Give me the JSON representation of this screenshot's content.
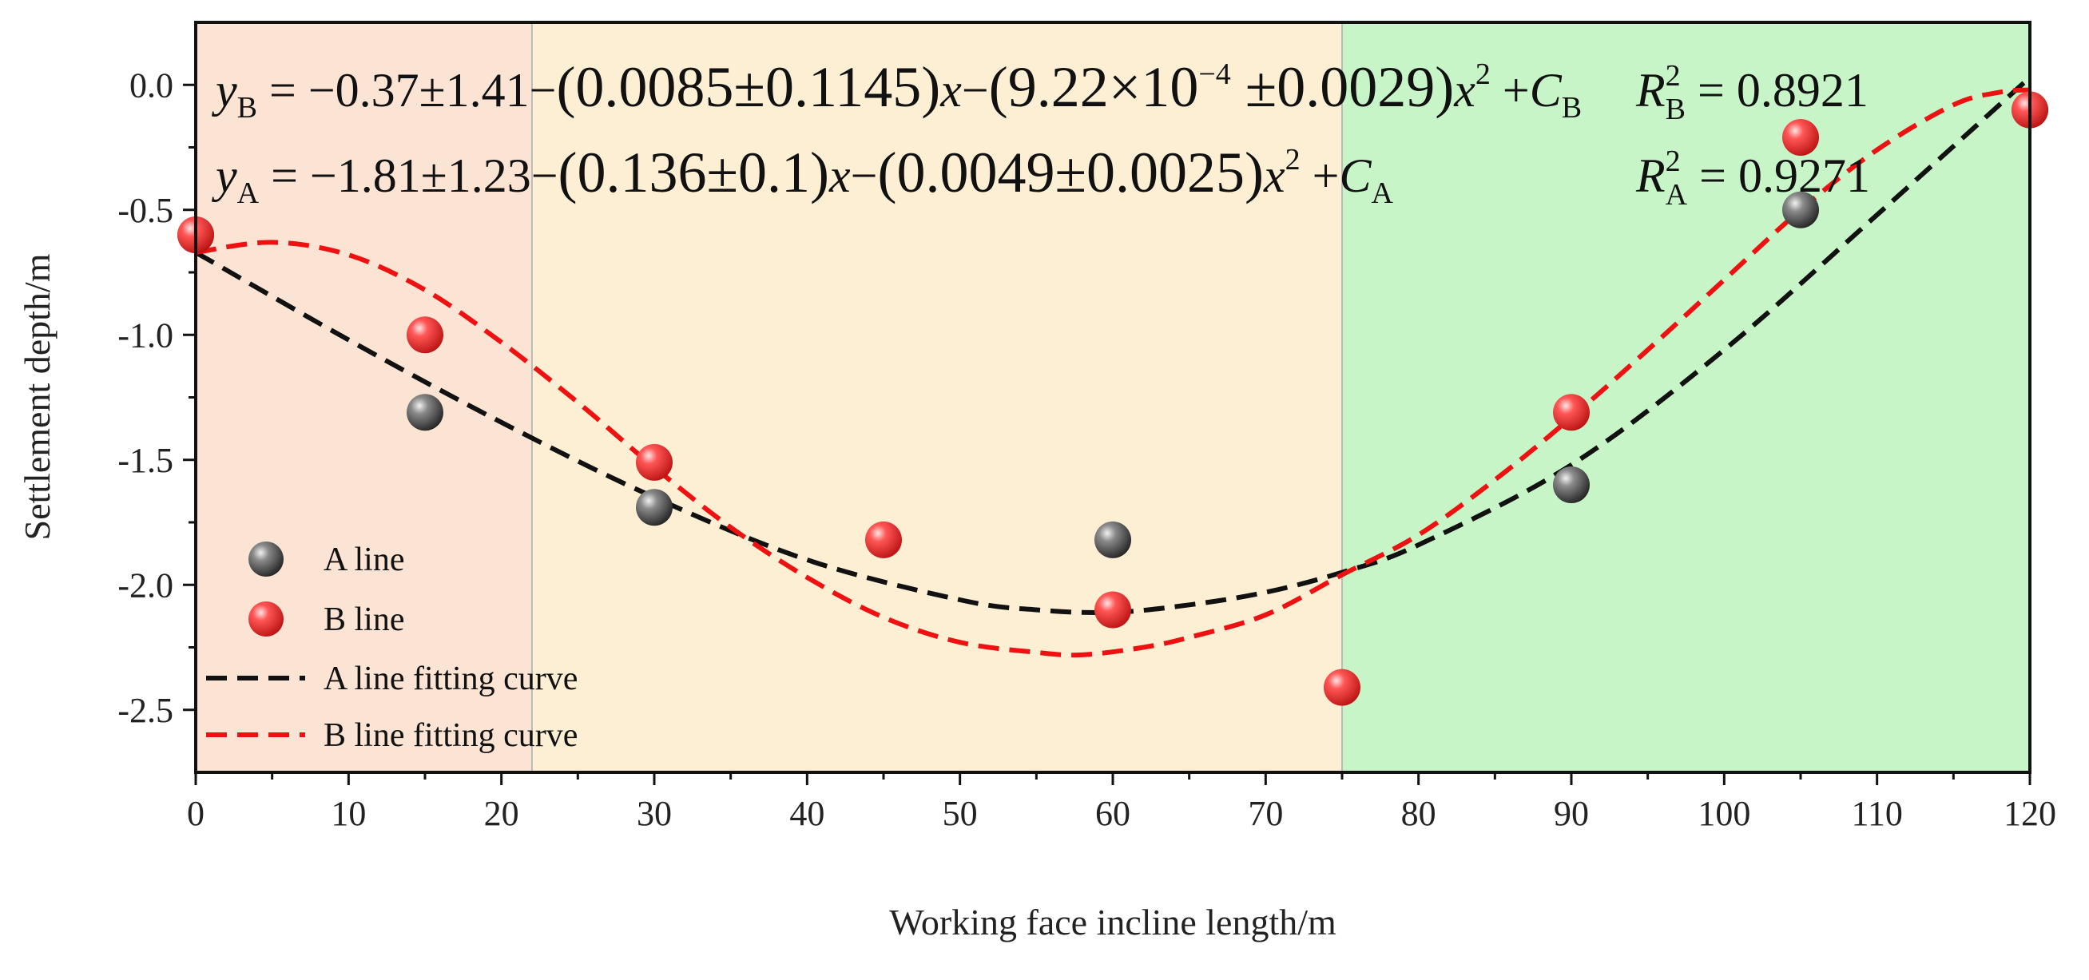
{
  "chart_data": {
    "type": "scatter",
    "title": "",
    "xlabel": "Working face incline length/m",
    "ylabel": "Settlement depth/m",
    "xlim": [
      0,
      120
    ],
    "ylim": [
      -2.75,
      0.25
    ],
    "x_ticks": [
      0,
      10,
      20,
      30,
      40,
      50,
      60,
      70,
      80,
      90,
      100,
      110,
      120
    ],
    "x_tick_labels": [
      "0",
      "10",
      "20",
      "30",
      "40",
      "50",
      "60",
      "70",
      "80",
      "90",
      "100",
      "110",
      "120"
    ],
    "y_ticks": [
      0.0,
      -0.5,
      -1.0,
      -1.5,
      -2.0,
      -2.5
    ],
    "y_tick_labels": [
      "0.0",
      "-0.5",
      "-1.0",
      "-1.5",
      "-2.0",
      "-2.5"
    ],
    "grid": false,
    "regions": [
      {
        "x_start": 0,
        "x_end": 22,
        "color": "#fce4d4"
      },
      {
        "x_start": 22,
        "x_end": 75,
        "color": "#fdefd4"
      },
      {
        "x_start": 75,
        "x_end": 120,
        "color": "#c8f5c8"
      }
    ],
    "series": [
      {
        "name": "A line",
        "kind": "points",
        "color": "#4a4a4a",
        "x": [
          0,
          15,
          30,
          60,
          90,
          105,
          120
        ],
        "y": [
          -0.6,
          -1.31,
          -1.69,
          -1.82,
          -1.6,
          -0.5,
          -0.1
        ]
      },
      {
        "name": "B line",
        "kind": "points",
        "color": "#f03c3c",
        "x": [
          0,
          15,
          30,
          45,
          60,
          75,
          90,
          105,
          120
        ],
        "y": [
          -0.6,
          -1.0,
          -1.51,
          -1.82,
          -2.1,
          -2.41,
          -1.31,
          -0.21,
          -0.1
        ]
      },
      {
        "name": "A line fitting curve",
        "kind": "dashed-line",
        "color": "#111111",
        "x": [
          0,
          10,
          20,
          30,
          40,
          50,
          55,
          60,
          65,
          70,
          75,
          80,
          90,
          100,
          110,
          120
        ],
        "y": [
          -0.67,
          -1.02,
          -1.35,
          -1.65,
          -1.9,
          -2.06,
          -2.1,
          -2.11,
          -2.08,
          -2.03,
          -1.95,
          -1.84,
          -1.52,
          -1.06,
          -0.52,
          0.03
        ]
      },
      {
        "name": "B line fitting curve",
        "kind": "dashed-line",
        "color": "#ee1111",
        "x": [
          0,
          5,
          10,
          15,
          20,
          25,
          30,
          35,
          40,
          45,
          50,
          55,
          58,
          62,
          65,
          70,
          75,
          80,
          85,
          90,
          95,
          100,
          105,
          110,
          115,
          118,
          120
        ],
        "y": [
          -0.67,
          -0.63,
          -0.68,
          -0.82,
          -1.03,
          -1.27,
          -1.53,
          -1.77,
          -1.97,
          -2.13,
          -2.23,
          -2.27,
          -2.28,
          -2.25,
          -2.21,
          -2.12,
          -1.96,
          -1.8,
          -1.58,
          -1.33,
          -1.06,
          -0.78,
          -0.5,
          -0.26,
          -0.08,
          -0.03,
          -0.02
        ]
      }
    ],
    "legend": {
      "position": "bottom-left",
      "entries": [
        "A line",
        "B line",
        "A line fitting curve",
        "B line fitting curve"
      ]
    },
    "annotations": {
      "eq_b": {
        "y_sym": "y",
        "y_sub": "B",
        "eq": " = −0.37±1.41−",
        "paren1": "(0.0085±0.1145)",
        "x1": "x",
        "minus": "−",
        "paren2_pre": "(9.22×10",
        "paren2_sup": "−4",
        "paren2_post": " ±0.0029)",
        "x2": "x",
        "x2_sup": "2",
        "plus": " +",
        "c_sym": "C",
        "c_sub": "B",
        "r_sym": "R",
        "r_sup": "2",
        "r_sub": "B",
        "r_val": " = 0.8921"
      },
      "eq_a": {
        "y_sym": "y",
        "y_sub": "A",
        "eq": " = −1.81±1.23−",
        "paren1": "(0.136±0.1)",
        "x1": "x",
        "minus": "−",
        "paren2": "(0.0049±0.0025)",
        "x2": "x",
        "x2_sup": "2",
        "plus": " +",
        "c_sym": "C",
        "c_sub": "A",
        "r_sym": "R",
        "r_sup": "2",
        "r_sub": "A",
        "r_val": " = 0.9271"
      }
    }
  }
}
